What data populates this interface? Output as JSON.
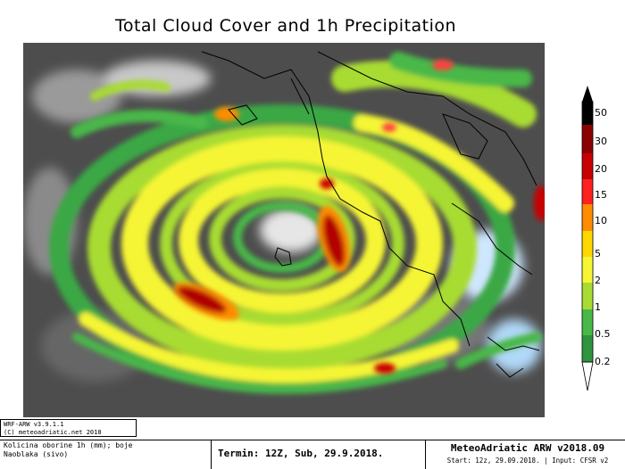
{
  "title": "Total Cloud Cover and 1h Precipitation",
  "colorbar": {
    "labels": [
      "50",
      "30",
      "20",
      "15",
      "10",
      "5",
      "2",
      "1",
      "0.5",
      "0.2"
    ],
    "colors": [
      "#000000",
      "#8b0000",
      "#c80000",
      "#ff2020",
      "#ff8c00",
      "#ffd700",
      "#f5f534",
      "#a8dc32",
      "#48b848",
      "#2e9440",
      "#ffffff"
    ]
  },
  "info": {
    "line1": "WRF-ARW v3.9.1.1",
    "line2": "(C) meteoadriatic.net 2018"
  },
  "legend": {
    "line1": "Kolicina oborine 1h (mm); boje",
    "line2": "Naoblaka (sivo)"
  },
  "termin": "Termin: 12Z, Sub, 29.9.2018.",
  "model": "MeteoAdriatic ARW v2018.09",
  "start": "Start: 12z, 29.09.2018. | Input: CFSR v2"
}
